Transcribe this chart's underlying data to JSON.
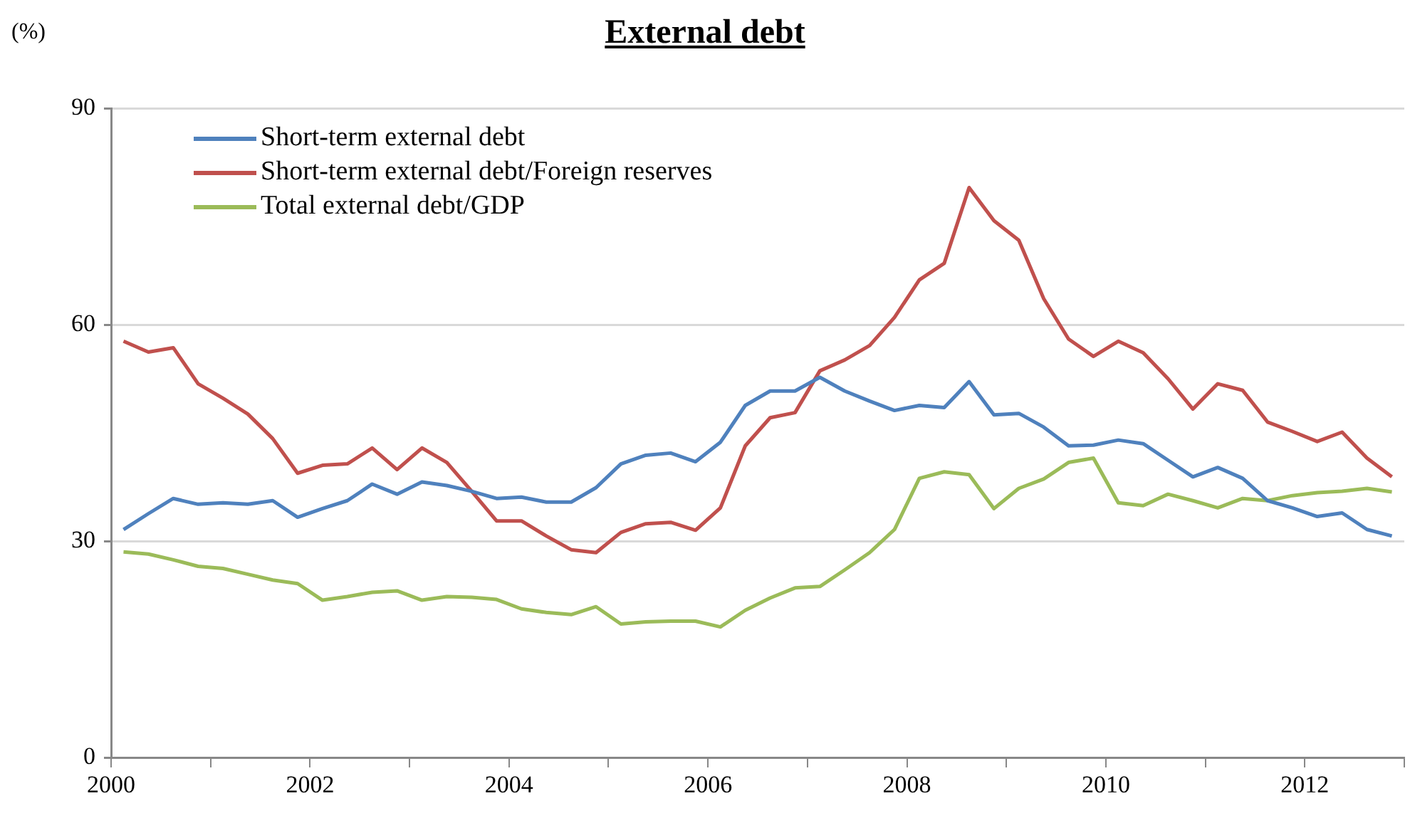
{
  "chart_data": {
    "type": "line",
    "title": "External debt",
    "ylabel": "(%)",
    "x": [
      2000.125,
      2000.375,
      2000.625,
      2000.875,
      2001.125,
      2001.375,
      2001.625,
      2001.875,
      2002.125,
      2002.375,
      2002.625,
      2002.875,
      2003.125,
      2003.375,
      2003.625,
      2003.875,
      2004.125,
      2004.375,
      2004.625,
      2004.875,
      2005.125,
      2005.375,
      2005.625,
      2005.875,
      2006.125,
      2006.375,
      2006.625,
      2006.875,
      2007.125,
      2007.375,
      2007.625,
      2007.875,
      2008.125,
      2008.375,
      2008.625,
      2008.875,
      2009.125,
      2009.375,
      2009.625,
      2009.875,
      2010.125,
      2010.375,
      2010.625,
      2010.875,
      2011.125,
      2011.375,
      2011.625,
      2011.875,
      2012.125,
      2012.375,
      2012.625,
      2012.875
    ],
    "series": [
      {
        "name": "Short-term external debt",
        "color": "#4f81bd",
        "values": [
          31.6,
          33.8,
          35.9,
          35.1,
          35.3,
          35.1,
          35.6,
          33.3,
          34.5,
          35.6,
          37.9,
          36.5,
          38.2,
          37.7,
          36.9,
          35.9,
          36.1,
          35.4,
          35.4,
          37.4,
          40.7,
          41.9,
          42.2,
          41.0,
          43.7,
          48.8,
          50.8,
          50.8,
          52.7,
          50.8,
          49.4,
          48.1,
          48.8,
          48.5,
          52.1,
          47.5,
          47.7,
          45.8,
          43.2,
          43.3,
          44.0,
          43.5,
          41.2,
          38.9,
          40.2,
          38.7,
          35.6,
          34.6,
          33.4,
          33.9,
          31.6,
          30.7
        ]
      },
      {
        "name": "Short-term external debt/Foreign reserves",
        "color": "#c0504d",
        "values": [
          57.7,
          56.2,
          56.8,
          51.8,
          49.8,
          47.6,
          44.2,
          39.4,
          40.5,
          40.7,
          42.9,
          39.9,
          42.9,
          40.9,
          36.9,
          32.8,
          32.8,
          30.7,
          28.8,
          28.4,
          31.2,
          32.4,
          32.6,
          31.5,
          34.6,
          43.2,
          47.1,
          47.8,
          53.6,
          55.1,
          57.1,
          61.0,
          66.2,
          68.5,
          79.0,
          74.4,
          71.7,
          63.6,
          58.0,
          55.6,
          57.7,
          56.1,
          52.5,
          48.3,
          51.8,
          50.9,
          46.5,
          45.2,
          43.8,
          45.1,
          41.5,
          38.9
        ]
      },
      {
        "name": "Total external debt/GDP",
        "color": "#9bbb59",
        "values": [
          28.5,
          28.2,
          27.4,
          26.5,
          26.2,
          25.4,
          24.6,
          24.1,
          21.8,
          22.3,
          22.9,
          23.1,
          21.8,
          22.3,
          22.2,
          21.9,
          20.6,
          20.1,
          19.8,
          20.9,
          18.5,
          18.8,
          18.9,
          18.9,
          18.1,
          20.4,
          22.1,
          23.5,
          23.7,
          26.0,
          28.4,
          31.6,
          38.7,
          39.6,
          39.2,
          34.5,
          37.3,
          38.6,
          40.9,
          41.5,
          35.3,
          34.9,
          36.5,
          35.6,
          34.6,
          35.9,
          35.6,
          36.3,
          36.7,
          36.9,
          37.3,
          36.8
        ]
      }
    ],
    "xlim": [
      2000,
      2013
    ],
    "xticks": [
      2000,
      {
        "value": 2001,
        "label": null
      },
      2002,
      {
        "value": 2003,
        "label": null
      },
      2004,
      {
        "value": 2005,
        "label": null
      },
      2006,
      {
        "value": 2007,
        "label": null
      },
      2008,
      {
        "value": 2009,
        "label": null
      },
      2010,
      {
        "value": 2011,
        "label": null
      },
      2012,
      {
        "value": 2013,
        "label": null
      }
    ],
    "ylim": [
      0,
      90
    ],
    "yticks": [
      0,
      30,
      60,
      90
    ],
    "grid": "y",
    "legend": "top left",
    "marker": "none",
    "line_style": "solid"
  }
}
